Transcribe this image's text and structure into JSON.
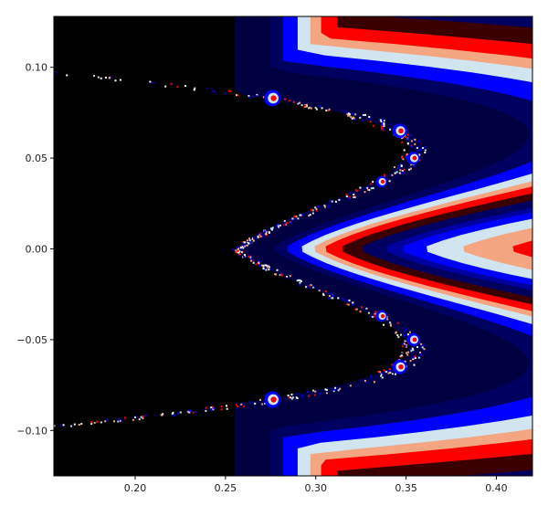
{
  "chart_data": {
    "type": "heatmap",
    "title": "",
    "xlabel": "",
    "ylabel": "",
    "xlim": [
      0.155,
      0.42
    ],
    "ylim": [
      -0.125,
      0.128
    ],
    "x_ticks": [
      {
        "value": 0.2,
        "label": "0.20"
      },
      {
        "value": 0.25,
        "label": "0.25"
      },
      {
        "value": 0.3,
        "label": "0.30"
      },
      {
        "value": 0.35,
        "label": "0.35"
      },
      {
        "value": 0.4,
        "label": "0.40"
      }
    ],
    "y_ticks": [
      {
        "value": 0.1,
        "label": "0.10"
      },
      {
        "value": 0.05,
        "label": "0.05"
      },
      {
        "value": 0.0,
        "label": "0.00"
      },
      {
        "value": -0.05,
        "label": "−0.05"
      },
      {
        "value": -0.1,
        "label": "−0.10"
      }
    ],
    "grid": false,
    "legend": "none",
    "background_color": "#000000",
    "colormap": "#000000, #3a0000, #cc0000, #ff0000, #f4a582, #d1e5f0, #0000ff, #0000a0, #000060",
    "boundary_x_at_y0": 0.255,
    "bands": [
      {
        "x_at_y0": 0.275,
        "color": "#000060"
      },
      {
        "x_at_y0": 0.282,
        "color": "#0000ff"
      },
      {
        "x_at_y0": 0.29,
        "color": "#d1e5f0"
      },
      {
        "x_at_y0": 0.297,
        "color": "#f4a582"
      },
      {
        "x_at_y0": 0.303,
        "color": "#ff0000"
      },
      {
        "x_at_y0": 0.312,
        "color": "#3a0000"
      },
      {
        "x_at_y0": 0.323,
        "color": "#000060"
      },
      {
        "x_at_y0": 0.336,
        "color": "#0000a0"
      },
      {
        "x_at_y0": 0.345,
        "color": "#0000ff"
      },
      {
        "x_at_y0": 0.358,
        "color": "#d1e5f0"
      },
      {
        "x_at_y0": 0.378,
        "color": "#f4a582"
      },
      {
        "x_at_y0": 0.405,
        "color": "#ff0000"
      }
    ]
  }
}
